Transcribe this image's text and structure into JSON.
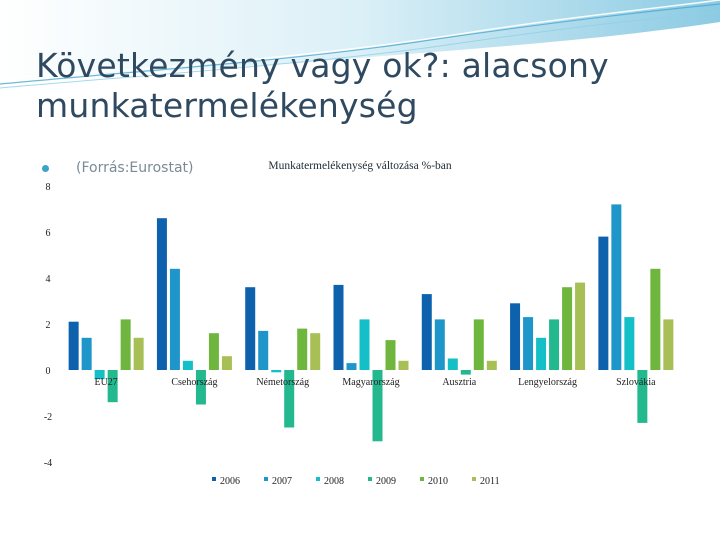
{
  "slide": {
    "title": "Következmény vagy ok?: alacsony munkatermelékenység",
    "source_note": "(Forrás:Eurostat)"
  },
  "chart_data": {
    "type": "bar",
    "title": "Munkatermelékenység változása %-ban",
    "categories": [
      "EU27",
      "Csehország",
      "Németország",
      "Magyarország",
      "Ausztria",
      "Lengyelország",
      "Szlovákia"
    ],
    "series": [
      {
        "name": "2006",
        "color": "#0e62ad",
        "values": [
          2.1,
          6.6,
          3.6,
          3.7,
          3.3,
          2.9,
          5.8
        ]
      },
      {
        "name": "2007",
        "color": "#1f96c9",
        "values": [
          1.4,
          4.4,
          1.7,
          0.3,
          2.2,
          2.3,
          7.2
        ]
      },
      {
        "name": "2008",
        "color": "#15bfc7",
        "values": [
          -0.4,
          0.4,
          -0.1,
          2.2,
          0.5,
          1.4,
          2.3
        ]
      },
      {
        "name": "2009",
        "color": "#24b88f",
        "values": [
          -1.4,
          -1.5,
          -2.5,
          -3.1,
          -0.2,
          2.2,
          -2.3
        ]
      },
      {
        "name": "2010",
        "color": "#6fb63f",
        "values": [
          2.2,
          1.6,
          1.8,
          1.3,
          2.2,
          3.6,
          4.4
        ]
      },
      {
        "name": "2011",
        "color": "#a7bf55",
        "values": [
          1.4,
          0.6,
          1.6,
          0.4,
          0.4,
          3.8,
          2.2
        ]
      }
    ],
    "yticks": [
      8,
      6,
      4,
      2,
      0,
      -2,
      -4
    ],
    "ylim": [
      -4,
      8
    ],
    "legend_position": "bottom",
    "grid": false
  }
}
